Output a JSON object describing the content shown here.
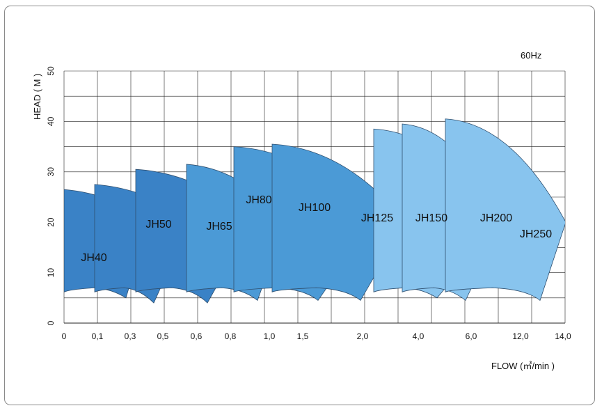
{
  "chart_data": {
    "type": "area",
    "frequency": "60Hz",
    "xlabel": "FLOW (㎥/min )",
    "ylabel": "HEAD ( M )",
    "y_ticks": [
      "0",
      "10",
      "20",
      "30",
      "40",
      "50"
    ],
    "x_ticks": [
      "0",
      "0.1",
      "0.3",
      "0.5",
      "0.6",
      "0.8",
      "1.0",
      "1.5",
      "2.0",
      "4.0",
      "6.0",
      "12.0",
      "14.0"
    ],
    "x_scale": "non-linear (labelled divisions)",
    "ylim": [
      0,
      50
    ],
    "grid": true,
    "series": [
      {
        "name": "JH40",
        "color": "#3a82c6",
        "flow_range": [
          0.0,
          0.3
        ],
        "head_max": 26.5,
        "head_min": 5
      },
      {
        "name": "JH50",
        "color": "#3a82c6",
        "flow_range": [
          0.1,
          0.5
        ],
        "head_max": 27.5,
        "head_min": 4
      },
      {
        "name": "JH65",
        "color": "#3a82c6",
        "flow_range": [
          0.3,
          0.8
        ],
        "head_max": 30.5,
        "head_min": 4
      },
      {
        "name": "JH80",
        "color": "#4b9ad6",
        "flow_range": [
          0.6,
          1.0
        ],
        "head_max": 31.5,
        "head_min": 4.5
      },
      {
        "name": "JH100",
        "color": "#4b9ad6",
        "flow_range": [
          0.8,
          2.0
        ],
        "head_max": 35,
        "head_min": 4.5
      },
      {
        "name": "JH125",
        "color": "#4b9ad6",
        "flow_range": [
          1.0,
          2.0
        ],
        "head_max": 35.5,
        "head_min": 4.5
      },
      {
        "name": "JH150",
        "color": "#88c4ee",
        "flow_range": [
          2.0,
          4.0
        ],
        "head_max": 38.5,
        "head_min": 5
      },
      {
        "name": "JH200",
        "color": "#88c4ee",
        "flow_range": [
          4.0,
          6.0
        ],
        "head_max": 39.5,
        "head_min": 4.5
      },
      {
        "name": "JH250",
        "color": "#88c4ee",
        "flow_range": [
          6.0,
          14.0
        ],
        "head_max": 40.5,
        "head_min": 4.5
      }
    ]
  }
}
